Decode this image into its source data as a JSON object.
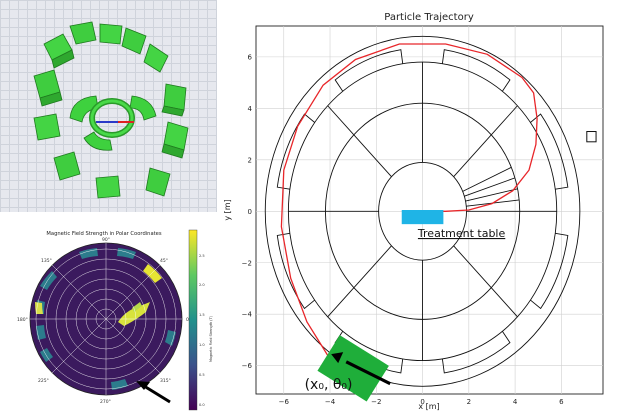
{
  "trajectory": {
    "title": "Particle Trajectory",
    "xlabel": "x [m]",
    "ylabel": "y [m]",
    "xlim": [
      -7.2,
      7.8
    ],
    "ylim": [
      -7.1,
      7.2
    ],
    "x_ticks": [
      -6,
      -4,
      -2,
      0,
      2,
      4,
      6
    ],
    "y_ticks": [
      -6,
      -4,
      -2,
      0,
      2,
      4,
      6
    ],
    "x_tick_labels": [
      "−6",
      "−4",
      "−2",
      "0",
      "2",
      "4",
      "6"
    ],
    "y_tick_labels": [
      "−6",
      "−4",
      "−2",
      "0",
      "2",
      "4",
      "6"
    ],
    "ring_radii": [
      1.9,
      4.2,
      5.8,
      6.8
    ],
    "spokes_deg": [
      0,
      45,
      90,
      135,
      180,
      225,
      270,
      315
    ],
    "treatment_table_label": "Treatment table",
    "initial_label": "(x₀, θ₀)",
    "trajectory_points": [
      [
        -4.1,
        -5.6
      ],
      [
        -5.0,
        -4.3
      ],
      [
        -5.7,
        -2.6
      ],
      [
        -6.1,
        -0.6
      ],
      [
        -6.0,
        1.6
      ],
      [
        -5.4,
        3.3
      ],
      [
        -4.3,
        4.9
      ],
      [
        -2.9,
        5.9
      ],
      [
        -1.0,
        6.5
      ],
      [
        1.0,
        6.5
      ],
      [
        2.8,
        6.1
      ],
      [
        4.3,
        5.2
      ],
      [
        4.8,
        4.6
      ],
      [
        4.95,
        3.6
      ],
      [
        4.9,
        2.6
      ],
      [
        4.6,
        1.6
      ],
      [
        3.9,
        0.8
      ],
      [
        3.0,
        0.3
      ],
      [
        2.0,
        0.05
      ],
      [
        1.0,
        0.0
      ],
      [
        0.0,
        0.0
      ]
    ],
    "colors": {
      "trajectory": "#e8262a",
      "table": "#1fb4e6",
      "source": "#1fae3a",
      "geometry": "#111111"
    }
  },
  "polar": {
    "title": "Magnetic Field Strength in Polar Coordinates",
    "angle_labels": [
      "0°",
      "45°",
      "90°",
      "135°",
      "180°",
      "225°",
      "270°",
      "315°"
    ],
    "colorbar_label": "Magnetic Field Strength (T)",
    "colorbar_ticks": [
      "0.0",
      "0.5",
      "1.0",
      "1.5",
      "2.0",
      "2.5"
    ],
    "colors": {
      "background": "#3b1a5e",
      "low": "#2c7c8c",
      "high": "#e6e534"
    }
  },
  "model3d": {
    "colors": {
      "magnet": "#3ed13e",
      "grid": "#cfd3db",
      "background": "#e6e8ee"
    }
  }
}
